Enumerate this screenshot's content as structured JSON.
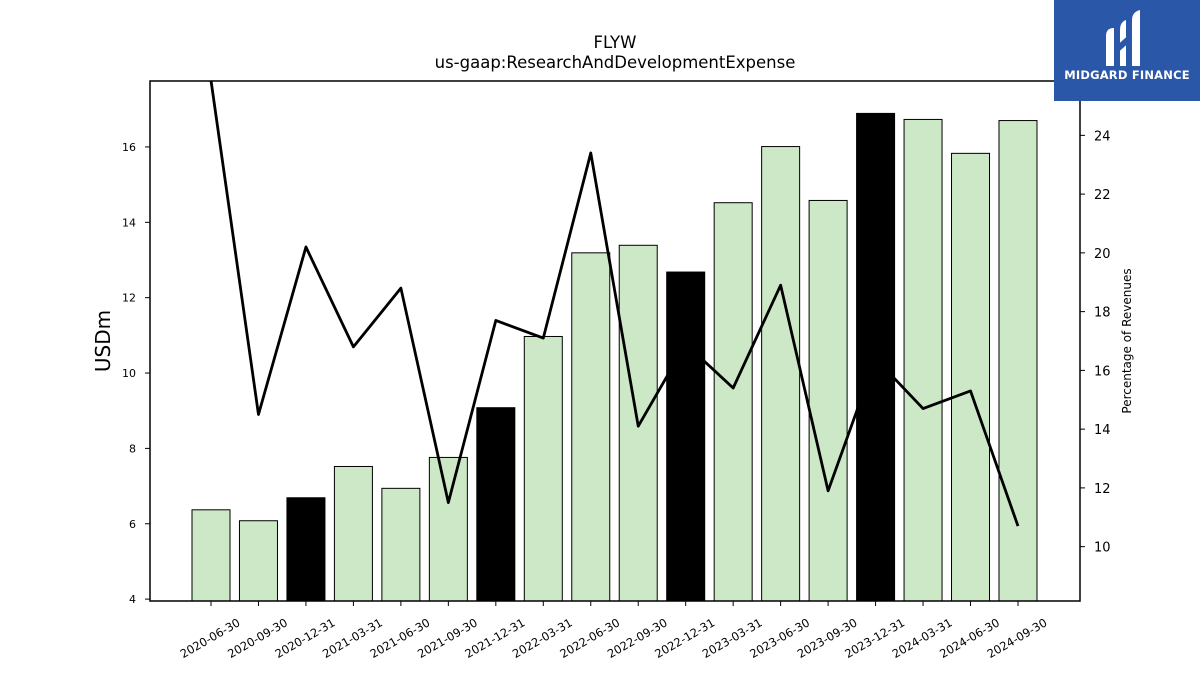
{
  "chart_data": {
    "type": "bar",
    "title": "FLYW",
    "subtitle": "us-gaap:ResearchAndDevelopmentExpense",
    "ylabel": "USDm",
    "y2label": "Percentage of Revenues",
    "categories": [
      "2020-06-30",
      "2020-09-30",
      "2020-12-31",
      "2021-03-31",
      "2021-06-30",
      "2021-09-30",
      "2021-12-31",
      "2022-03-31",
      "2022-06-30",
      "2022-09-30",
      "2022-12-31",
      "2023-03-31",
      "2023-06-30",
      "2023-09-30",
      "2023-12-31",
      "2024-03-31",
      "2024-06-30",
      "2024-09-30"
    ],
    "series": [
      {
        "type": "bar",
        "axis": "left",
        "values": [
          6.37,
          6.08,
          6.69,
          7.52,
          6.94,
          7.76,
          9.08,
          10.97,
          13.19,
          13.39,
          12.68,
          14.52,
          16.01,
          14.58,
          16.89,
          16.73,
          15.83,
          16.7
        ],
        "highlight": [
          false,
          false,
          true,
          false,
          false,
          false,
          true,
          false,
          false,
          false,
          true,
          false,
          false,
          false,
          true,
          false,
          false,
          false
        ]
      },
      {
        "type": "line",
        "axis": "right",
        "values": [
          27.2,
          14.5,
          20.2,
          16.8,
          18.8,
          11.5,
          17.7,
          17.1,
          23.4,
          14.1,
          16.9,
          15.4,
          18.9,
          11.9,
          16.4,
          14.7,
          15.3,
          10.7
        ]
      }
    ],
    "ylim": [
      3.95,
      17.75
    ],
    "y2lim": [
      8.15,
      25.85
    ],
    "yticks": [
      4,
      6,
      8,
      10,
      12,
      14,
      16
    ],
    "y2ticks": [
      10,
      12,
      14,
      16,
      18,
      20,
      22,
      24
    ],
    "colors": {
      "bar": "#cce8c6",
      "bar_highlight": "#000000",
      "line": "#000000",
      "edge": "#000000"
    },
    "grid": false
  },
  "logo": {
    "text": "MIDGARD FINANCE",
    "bg": "#2a57a8"
  }
}
